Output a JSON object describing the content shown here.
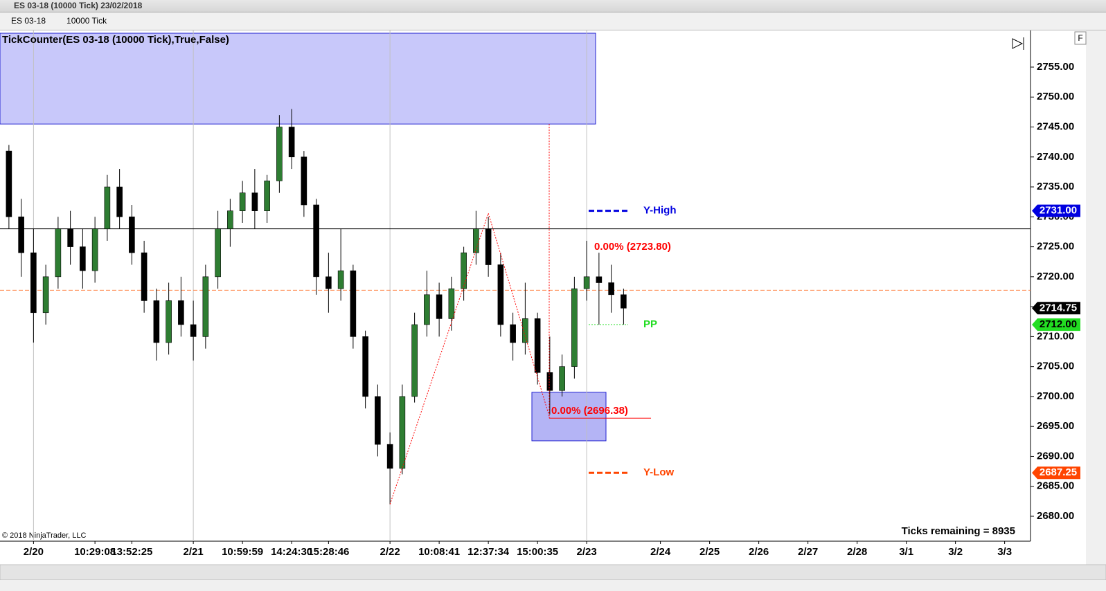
{
  "window": {
    "title": "ES 03-18 (10000 Tick)  23/02/2018",
    "instrument": "ES 03-18",
    "period": "10000 Tick",
    "panel_button": "F"
  },
  "chart_data": {
    "type": "candlestick",
    "title": "TickCounter(ES 03-18 (10000 Tick),True,False)",
    "copyright": "© 2018 NinjaTrader, LLC",
    "status": "Ticks remaining = 8935",
    "categories": [
      null,
      null,
      "2/20",
      null,
      null,
      null,
      null,
      "10:29:08",
      null,
      null,
      "13:52:25",
      null,
      null,
      null,
      null,
      "2/21",
      null,
      null,
      null,
      "10:59:59",
      null,
      null,
      null,
      "14:24:30",
      null,
      null,
      "15:28:46",
      null,
      null,
      null,
      null,
      "2/22",
      null,
      null,
      null,
      "10:08:41",
      null,
      null,
      null,
      "12:37:34",
      null,
      null,
      null,
      "15:00:35",
      null,
      null,
      null,
      "2/23",
      null,
      null,
      null,
      null,
      null,
      "2/24",
      null,
      null,
      null,
      "2/25",
      null,
      null,
      null,
      "2/26",
      null,
      null,
      null,
      "2/27",
      null,
      null,
      null,
      "2/28",
      null,
      null,
      null,
      "3/1",
      null,
      null,
      null,
      "3/2",
      null,
      null,
      null,
      "3/3",
      null,
      null
    ],
    "open": [
      2741,
      2730,
      2724,
      2714,
      2720,
      2728,
      2725,
      2721,
      2728,
      2735,
      2730,
      2724,
      2716,
      2709,
      2716,
      2712,
      2710,
      2720,
      2728,
      2731,
      2734,
      2731,
      2736,
      2745,
      2740,
      2732,
      2720,
      2718,
      2721,
      2710,
      2700,
      2692,
      2688,
      2700,
      2712,
      2717,
      2713,
      2718,
      2724,
      2728,
      2722,
      2712,
      2709,
      2713,
      2704,
      2701,
      2705,
      2718,
      2720,
      2719,
      2717,
      null,
      null,
      null,
      null,
      null,
      null,
      null,
      null,
      null,
      null,
      null,
      null,
      null,
      null,
      null,
      null,
      null,
      null,
      null,
      null,
      null,
      null,
      null,
      null,
      null,
      null,
      null,
      null,
      null,
      null,
      null,
      null,
      null
    ],
    "high": [
      2742,
      2733,
      2728,
      2722,
      2730,
      2731,
      2728,
      2730,
      2737,
      2738,
      2732,
      2726,
      2718,
      2719,
      2720,
      2716,
      2722,
      2731,
      2733,
      2736,
      2738,
      2737,
      2747,
      2748,
      2741,
      2733,
      2724,
      2728,
      2722,
      2711,
      2702,
      2694,
      2702,
      2714,
      2721,
      2719,
      2720,
      2725,
      2731,
      2730,
      2724,
      2714,
      2719,
      2714,
      2710,
      2707,
      2720,
      2726,
      2724,
      2722,
      2718,
      null,
      null,
      null,
      null,
      null,
      null,
      null,
      null,
      null,
      null,
      null,
      null,
      null,
      null,
      null,
      null,
      null,
      null,
      null,
      null,
      null,
      null,
      null,
      null,
      null,
      null,
      null,
      null,
      null,
      null,
      null,
      null,
      null
    ],
    "low": [
      2728,
      2720,
      2709,
      2712,
      2718,
      2722,
      2718,
      2719,
      2726,
      2728,
      2722,
      2714,
      2706,
      2707,
      2710,
      2706,
      2708,
      2718,
      2725,
      2729,
      2728,
      2729,
      2734,
      2738,
      2730,
      2717,
      2714,
      2716,
      2708,
      2698,
      2690,
      2682,
      2687,
      2699,
      2710,
      2710,
      2711,
      2716,
      2722,
      2720,
      2710,
      2706,
      2707,
      2702,
      2697,
      2700,
      2703,
      2716,
      2712,
      2714,
      2712,
      null,
      null,
      null,
      null,
      null,
      null,
      null,
      null,
      null,
      null,
      null,
      null,
      null,
      null,
      null,
      null,
      null,
      null,
      null,
      null,
      null,
      null,
      null,
      null,
      null,
      null,
      null,
      null,
      null,
      null,
      null,
      null,
      null
    ],
    "close": [
      2730,
      2724,
      2714,
      2720,
      2728,
      2725,
      2721,
      2728,
      2735,
      2730,
      2724,
      2716,
      2709,
      2716,
      2712,
      2710,
      2720,
      2728,
      2731,
      2734,
      2731,
      2736,
      2745,
      2740,
      2732,
      2720,
      2718,
      2721,
      2710,
      2700,
      2692,
      2688,
      2700,
      2712,
      2717,
      2713,
      2718,
      2724,
      2728,
      2722,
      2712,
      2709,
      2713,
      2704,
      2701,
      2705,
      2718,
      2720,
      2719,
      2717,
      2714.75,
      null,
      null,
      null,
      null,
      null,
      null,
      null,
      null,
      null,
      null,
      null,
      null,
      null,
      null,
      null,
      null,
      null,
      null,
      null,
      null,
      null,
      null,
      null,
      null,
      null,
      null,
      null,
      null,
      null,
      null,
      null,
      null,
      null
    ],
    "up_color": "#2e7d32",
    "down_color": "#000000",
    "ylim": [
      2675.84,
      2760.66
    ],
    "yticks": [
      {
        "value": 2680,
        "label": "2680.00"
      },
      {
        "value": 2685,
        "label": "2685.00"
      },
      {
        "value": 2690,
        "label": "2690.00"
      },
      {
        "value": 2695,
        "label": "2695.00"
      },
      {
        "value": 2700,
        "label": "2700.00"
      },
      {
        "value": 2705,
        "label": "2705.00"
      },
      {
        "value": 2710,
        "label": "2710.00"
      },
      {
        "value": 2715,
        "label": "2715.00"
      },
      {
        "value": 2720,
        "label": "2720.00"
      },
      {
        "value": 2725,
        "label": "2725.00"
      },
      {
        "value": 2730,
        "label": "2730.00"
      },
      {
        "value": 2735,
        "label": "2735.00"
      },
      {
        "value": 2740,
        "label": "2740.00"
      },
      {
        "value": 2745,
        "label": "2745.00"
      },
      {
        "value": 2750,
        "label": "2750.00"
      },
      {
        "value": 2755,
        "label": "2755.00"
      }
    ],
    "levels": [
      {
        "name": "Y-High",
        "value": 2731,
        "label": "2731.00",
        "color": "#0000e0",
        "text_color": "#ffffff"
      },
      {
        "name": "PP",
        "value": 2712,
        "label": "2712.00",
        "color": "#22dd22",
        "text_color": "#000000"
      },
      {
        "name": "Y-Low",
        "value": 2687.25,
        "label": "2687.25",
        "color": "#ff4500",
        "text_color": "#ffffff"
      }
    ],
    "last_price": {
      "value": 2714.75,
      "label": "2714.75",
      "color": "#000000"
    },
    "hlines": [
      {
        "value": 2728,
        "color": "#000000",
        "dashed": false
      },
      {
        "value": 2717.75,
        "color": "#ff7f3f",
        "dashed": true
      }
    ],
    "zones": [
      {
        "low": 2745.5,
        "high": 2760.66,
        "color": "#c8c8fa"
      },
      {
        "low": 2692.6,
        "high": 2700.7,
        "color": "#b4b4f5"
      }
    ],
    "zigzag": {
      "values": [
        2682,
        2730.6,
        2696.38
      ],
      "color": "#ff0000"
    },
    "annotations": [
      "0.00% (2723.80)",
      "0.00% (2696.38)"
    ]
  }
}
